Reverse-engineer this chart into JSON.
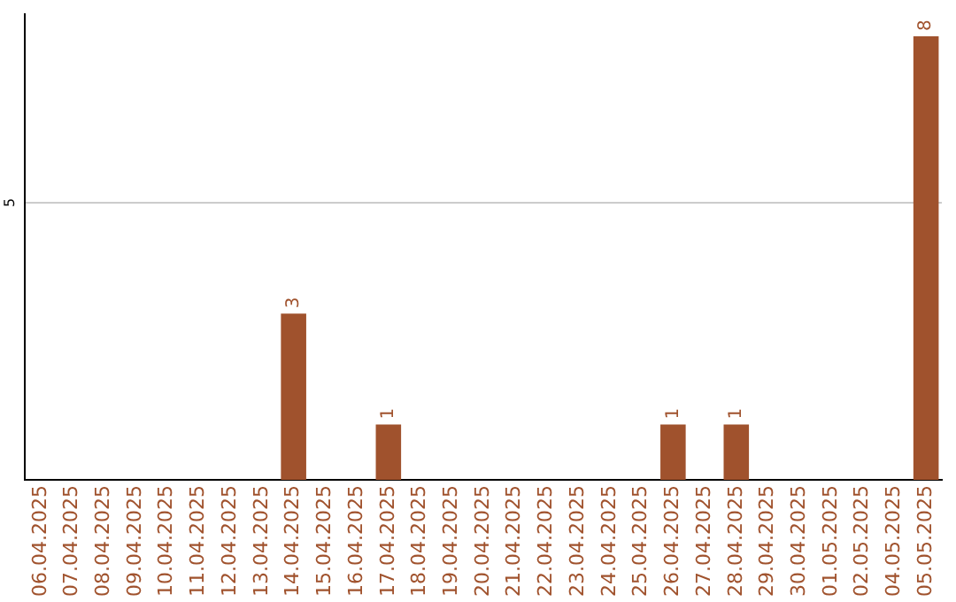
{
  "chart_data": {
    "type": "bar",
    "categories": [
      "06.04.2025",
      "07.04.2025",
      "08.04.2025",
      "09.04.2025",
      "10.04.2025",
      "11.04.2025",
      "12.04.2025",
      "13.04.2025",
      "14.04.2025",
      "15.04.2025",
      "16.04.2025",
      "17.04.2025",
      "18.04.2025",
      "19.04.2025",
      "20.04.2025",
      "21.04.2025",
      "22.04.2025",
      "23.04.2025",
      "24.04.2025",
      "25.04.2025",
      "26.04.2025",
      "27.04.2025",
      "28.04.2025",
      "29.04.2025",
      "30.04.2025",
      "01.05.2025",
      "02.05.2025",
      "04.05.2025",
      "05.05.2025"
    ],
    "values": [
      0,
      0,
      0,
      0,
      0,
      0,
      0,
      0,
      3,
      0,
      0,
      1,
      0,
      0,
      0,
      0,
      0,
      0,
      0,
      0,
      1,
      0,
      1,
      0,
      0,
      0,
      0,
      0,
      8
    ],
    "value_labels": [
      null,
      null,
      null,
      null,
      null,
      null,
      null,
      null,
      "3",
      null,
      null,
      "1",
      null,
      null,
      null,
      null,
      null,
      null,
      null,
      null,
      "1",
      null,
      "1",
      null,
      null,
      null,
      null,
      null,
      "8"
    ],
    "color": "#a0522d",
    "ylim": [
      0,
      8.4
    ],
    "yticks": [
      5
    ],
    "grid": "y",
    "legend": false
  }
}
